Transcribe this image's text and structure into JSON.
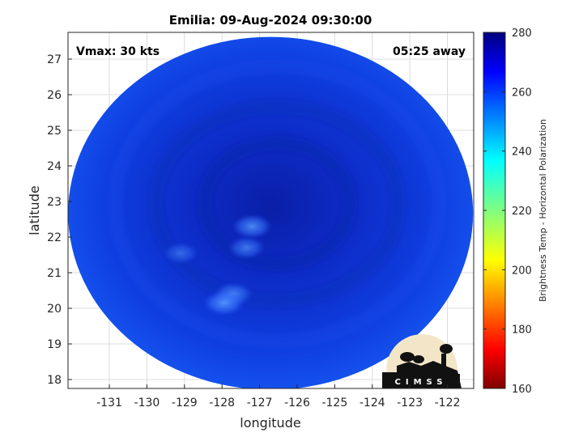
{
  "chart_data": {
    "type": "heatmap",
    "title": "Emilia: 09-Aug-2024 09:30:00",
    "xlabel": "longitude",
    "ylabel": "latitude",
    "xlim": [
      -132.1,
      -121.3
    ],
    "ylim": [
      17.75,
      27.75
    ],
    "xticks": [
      -131,
      -130,
      -129,
      -128,
      -127,
      -126,
      -125,
      -124,
      -123,
      -122
    ],
    "xtick_labels": [
      "-131",
      "-130",
      "-129",
      "-128",
      "-127",
      "-126",
      "-125",
      "-124",
      "-123",
      "-122"
    ],
    "yticks": [
      18,
      19,
      20,
      21,
      22,
      23,
      24,
      25,
      26,
      27
    ],
    "ytick_labels": [
      "18",
      "19",
      "20",
      "21",
      "22",
      "23",
      "24",
      "25",
      "26",
      "27"
    ],
    "grid": true,
    "annotations": {
      "left": "Vmax: 30 kts",
      "right": "05:25 away"
    },
    "colorbar": {
      "label": "Brightness Temp - Horizontal Polarization",
      "range": [
        160,
        280
      ],
      "ticks": [
        160,
        180,
        200,
        220,
        240,
        260,
        280
      ],
      "tick_labels": [
        "160",
        "180",
        "200",
        "220",
        "240",
        "260",
        "280"
      ],
      "colormap": "jet"
    },
    "field": {
      "center": [
        -126.75,
        22.6
      ],
      "background_value": 262,
      "core_value": 268,
      "edge_value": 258,
      "warm_patches": [
        {
          "lon": -127.2,
          "lat": 22.3,
          "value": 250
        },
        {
          "lon": -127.35,
          "lat": 21.7,
          "value": 252
        },
        {
          "lon": -129.1,
          "lat": 21.55,
          "value": 254
        },
        {
          "lon": -127.7,
          "lat": 20.4,
          "value": 251
        },
        {
          "lon": -127.95,
          "lat": 20.15,
          "value": 249
        }
      ]
    },
    "logo": "CIMSS"
  }
}
